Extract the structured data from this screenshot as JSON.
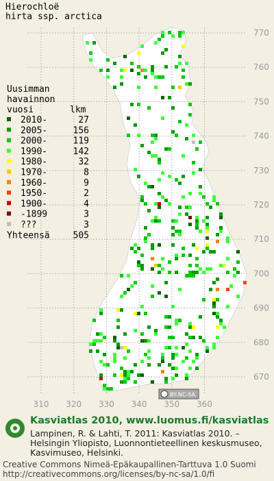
{
  "title": [
    "Hierochloë",
    "hirta ssp. arctica"
  ],
  "legend": {
    "heading": [
      "Uusimman",
      "havainnon",
      "vuosi"
    ],
    "count_heading": "lkm",
    "items": [
      {
        "label": "2010-",
        "count": 27,
        "color": "#006400"
      },
      {
        "label": "2005-",
        "count": 156,
        "color": "#009a00"
      },
      {
        "label": "2000-",
        "count": 119,
        "color": "#00c800"
      },
      {
        "label": "1990-",
        "count": 142,
        "color": "#3cff3c"
      },
      {
        "label": "1980-",
        "count": 32,
        "color": "#ffff00"
      },
      {
        "label": "1970-",
        "count": 8,
        "color": "#ffc800"
      },
      {
        "label": "1960-",
        "count": 9,
        "color": "#ff8000"
      },
      {
        "label": "1950-",
        "count": 2,
        "color": "#ff4000"
      },
      {
        "label": "1900-",
        "count": 4,
        "color": "#c80000"
      },
      {
        "label": "-1899",
        "count": 3,
        "color": "#800000"
      },
      {
        "label": "???",
        "count": 3,
        "color": "#c0c0c0"
      }
    ],
    "total_label": "Yhteensä",
    "total": 505
  },
  "map": {
    "northing_labels": [
      770,
      760,
      750,
      740,
      730,
      720,
      710,
      700,
      690,
      680,
      670
    ],
    "easting_labels": [
      310,
      320,
      330,
      340,
      350,
      360
    ],
    "badge": "BY-NC-SA"
  },
  "footer": {
    "site": "Kasviatlas 2010, www.luomus.fi/kasviatlas",
    "citation": [
      "Lampinen, R. & Lahti, T. 2011: Kasviatlas 2010. –",
      "Helsingin Yliopisto, Luonnontieteellinen keskusmuseo,",
      "Kasvimuseo, Helsinki."
    ],
    "license": [
      "Creative Commons Nimeä-Epäkaupallinen-Tarttuva 1.0 Suomi",
      "http://creativecommons.org/licenses/by-nc-sa/1.0/fi"
    ]
  }
}
